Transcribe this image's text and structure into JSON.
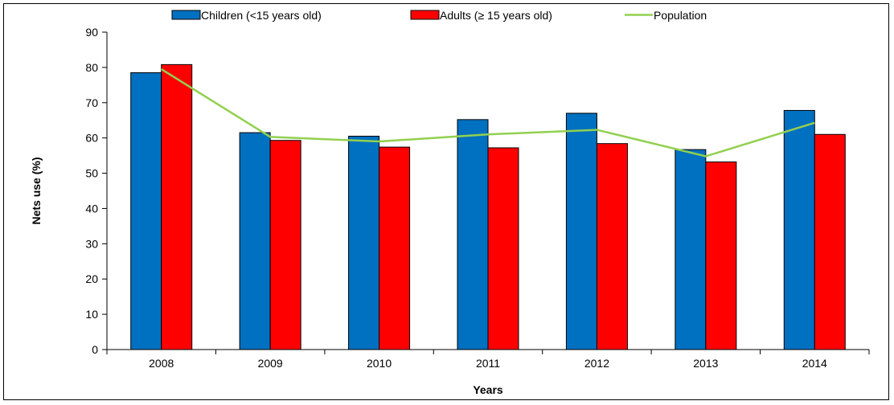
{
  "chart_data": {
    "type": "bar",
    "title": "",
    "xlabel": "Years",
    "ylabel": "Nets use (%)",
    "ylim": [
      0,
      90
    ],
    "yticks": [
      0,
      10,
      20,
      30,
      40,
      50,
      60,
      70,
      80,
      90
    ],
    "categories": [
      "2008",
      "2009",
      "2010",
      "2011",
      "2012",
      "2013",
      "2014"
    ],
    "legend": {
      "placement": "top"
    },
    "grid": false,
    "series": [
      {
        "name": "Children (<15 years old)",
        "kind": "bar",
        "color": "#0070C0",
        "values": [
          78.5,
          61.5,
          60.5,
          65.2,
          67.0,
          56.7,
          67.8
        ]
      },
      {
        "name": "Adults (≥ 15 years old)",
        "kind": "bar",
        "color": "#FF0000",
        "values": [
          80.8,
          59.3,
          57.4,
          57.2,
          58.4,
          53.2,
          61.0
        ]
      },
      {
        "name": "Population",
        "kind": "line",
        "color": "#92D050",
        "values": [
          79.5,
          60.3,
          59.0,
          61.0,
          62.3,
          54.8,
          64.3
        ]
      }
    ]
  }
}
